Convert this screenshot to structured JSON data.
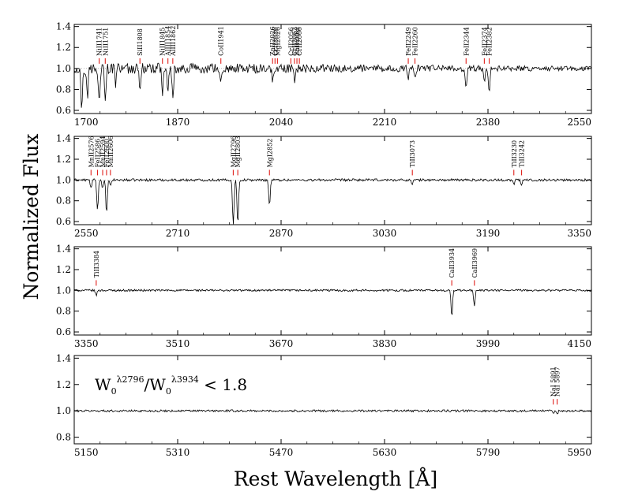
{
  "figure": {
    "ylabel": "Normalized Flux",
    "xlabel": "Rest Wavelength [Å]"
  },
  "annotation": {
    "w0": "W",
    "sub1": "0",
    "sup1": "λ2796",
    "slash": "/",
    "w0b": "W",
    "sub2": "0",
    "sup2": "λ3934",
    "rel": " < 1.8"
  },
  "colors": {
    "spectrum": "#000000",
    "line_marker": "#e0201b",
    "continuum": "#888888"
  },
  "chart_data": [
    {
      "type": "line",
      "panel": 1,
      "xlim": [
        1700,
        2550
      ],
      "ylim": [
        0.57,
        1.42
      ],
      "xticks": [
        1700,
        1870,
        2040,
        2210,
        2380,
        2550
      ],
      "yticks": [
        0.6,
        0.8,
        1.0,
        1.2,
        1.4
      ],
      "ytick_labels": [
        "0.6",
        "0.8",
        "1.0",
        "1.2",
        "1.4"
      ],
      "noise": 0.035,
      "grid": false,
      "lines": [
        {
          "label": "NiII1741",
          "wave": 1741
        },
        {
          "label": "NiII1751",
          "wave": 1751
        },
        {
          "label": "SiII1808",
          "wave": 1808
        },
        {
          "label": "NiII1845",
          "wave": 1845
        },
        {
          "label": "AlIII1854",
          "wave": 1854
        },
        {
          "label": "AlIII1862",
          "wave": 1862
        },
        {
          "label": "CoII1941",
          "wave": 1941
        },
        {
          "label": "ZnII2026",
          "wave": 2026
        },
        {
          "label": "CrII2026",
          "wave": 2030
        },
        {
          "label": "MgI2026",
          "wave": 2034
        },
        {
          "label": "CrII2056",
          "wave": 2056
        },
        {
          "label": "CrII2062",
          "wave": 2062
        },
        {
          "label": "ZnII2062",
          "wave": 2066
        },
        {
          "label": "CrII2066",
          "wave": 2070
        },
        {
          "label": "FeII2249",
          "wave": 2249
        },
        {
          "label": "FeII2260",
          "wave": 2260
        },
        {
          "label": "FeII2344",
          "wave": 2344
        },
        {
          "label": "FeII2374",
          "wave": 2374
        },
        {
          "label": "FeII2382",
          "wave": 2382
        }
      ],
      "absorption": [
        {
          "x": 1712,
          "depth": 0.4
        },
        {
          "x": 1722,
          "depth": 0.25
        },
        {
          "x": 1741,
          "depth": 0.3
        },
        {
          "x": 1751,
          "depth": 0.28
        },
        {
          "x": 1768,
          "depth": 0.15
        },
        {
          "x": 1808,
          "depth": 0.18
        },
        {
          "x": 1845,
          "depth": 0.3
        },
        {
          "x": 1854,
          "depth": 0.25
        },
        {
          "x": 1862,
          "depth": 0.32
        },
        {
          "x": 1941,
          "depth": 0.12
        },
        {
          "x": 2026,
          "depth": 0.12
        },
        {
          "x": 2062,
          "depth": 0.1
        },
        {
          "x": 2249,
          "depth": 0.08
        },
        {
          "x": 2260,
          "depth": 0.09
        },
        {
          "x": 2344,
          "depth": 0.2
        },
        {
          "x": 2374,
          "depth": 0.12
        },
        {
          "x": 2382,
          "depth": 0.24
        }
      ]
    },
    {
      "type": "line",
      "panel": 2,
      "xlim": [
        2550,
        3350
      ],
      "ylim": [
        0.57,
        1.42
      ],
      "xticks": [
        2550,
        2710,
        2870,
        3030,
        3190,
        3350
      ],
      "yticks": [
        0.6,
        0.8,
        1.0,
        1.2,
        1.4
      ],
      "ytick_labels": [
        "0.6",
        "0.8",
        "1.0",
        "1.2",
        "1.4"
      ],
      "noise": 0.012,
      "grid": false,
      "lines": [
        {
          "label": "MnII2576",
          "wave": 2576
        },
        {
          "label": "FeII2586",
          "wave": 2586
        },
        {
          "label": "MnII2594",
          "wave": 2594
        },
        {
          "label": "FeII2600",
          "wave": 2600
        },
        {
          "label": "MnII2606",
          "wave": 2606
        },
        {
          "label": "MgII2796",
          "wave": 2796
        },
        {
          "label": "MgII2803",
          "wave": 2803
        },
        {
          "label": "MgI2852",
          "wave": 2852
        },
        {
          "label": "TiII3073",
          "wave": 3073
        },
        {
          "label": "TiII3230",
          "wave": 3230
        },
        {
          "label": "TiII3242",
          "wave": 3242
        }
      ],
      "absorption": [
        {
          "x": 2576,
          "depth": 0.08
        },
        {
          "x": 2586,
          "depth": 0.3
        },
        {
          "x": 2594,
          "depth": 0.08
        },
        {
          "x": 2600,
          "depth": 0.33
        },
        {
          "x": 2606,
          "depth": 0.06
        },
        {
          "x": 2796,
          "depth": 0.45
        },
        {
          "x": 2803,
          "depth": 0.44
        },
        {
          "x": 2852,
          "depth": 0.25
        },
        {
          "x": 3073,
          "depth": 0.04
        },
        {
          "x": 3230,
          "depth": 0.04
        },
        {
          "x": 3242,
          "depth": 0.05
        }
      ]
    },
    {
      "type": "line",
      "panel": 3,
      "xlim": [
        3350,
        4150
      ],
      "ylim": [
        0.57,
        1.42
      ],
      "xticks": [
        3350,
        3510,
        3670,
        3830,
        3990,
        4150
      ],
      "yticks": [
        0.6,
        0.8,
        1.0,
        1.2,
        1.4
      ],
      "ytick_labels": [
        "0.6",
        "0.8",
        "1.0",
        "1.2",
        "1.4"
      ],
      "noise": 0.01,
      "grid": false,
      "lines": [
        {
          "label": "TiII3384",
          "wave": 3384
        },
        {
          "label": "CaII3934",
          "wave": 3934
        },
        {
          "label": "CaII3969",
          "wave": 3969
        }
      ],
      "absorption": [
        {
          "x": 3384,
          "depth": 0.05
        },
        {
          "x": 3934,
          "depth": 0.26
        },
        {
          "x": 3969,
          "depth": 0.15
        }
      ]
    },
    {
      "type": "line",
      "panel": 4,
      "xlim": [
        5150,
        5950
      ],
      "ylim": [
        0.75,
        1.42
      ],
      "xticks": [
        5150,
        5310,
        5470,
        5630,
        5790,
        5950
      ],
      "yticks": [
        0.8,
        1.0,
        1.2,
        1.4
      ],
      "ytick_labels": [
        "0.8",
        "1.0",
        "1.2",
        "1.4"
      ],
      "noise": 0.008,
      "grid": false,
      "lines": [
        {
          "label": "NaI 5891",
          "wave": 5891
        },
        {
          "label": "NaI 5897",
          "wave": 5897
        }
      ],
      "absorption": [
        {
          "x": 5891,
          "depth": 0.02
        },
        {
          "x": 5897,
          "depth": 0.025
        }
      ]
    }
  ]
}
